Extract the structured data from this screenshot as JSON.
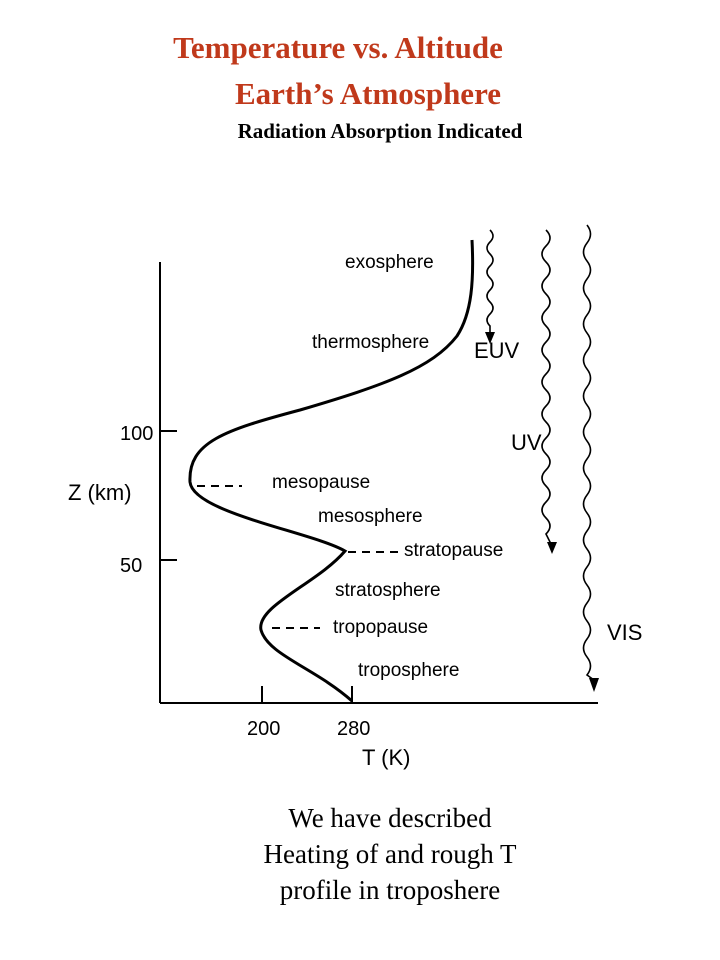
{
  "title": {
    "line1": "Temperature vs. Altitude",
    "line2": "Earth’s Atmosphere",
    "subtitle": "Radiation Absorption Indicated"
  },
  "diagram": {
    "y_axis_label": "Z (km)",
    "x_axis_label": "T (K)",
    "y_ticks": [
      "100",
      "50"
    ],
    "x_ticks": [
      "200",
      "280"
    ],
    "layers": {
      "exosphere": "exosphere",
      "thermosphere": "thermosphere",
      "mesopause": "mesopause",
      "mesosphere": "mesosphere",
      "stratopause": "stratopause",
      "stratosphere": "stratosphere",
      "tropopause": "tropopause",
      "troposphere": "troposphere"
    },
    "radiation": {
      "euv": "EUV",
      "uv": "UV",
      "vis": "VIS"
    }
  },
  "caption": {
    "line1": "We have described",
    "line2": "Heating of and rough T",
    "line3": "profile in troposhere"
  }
}
